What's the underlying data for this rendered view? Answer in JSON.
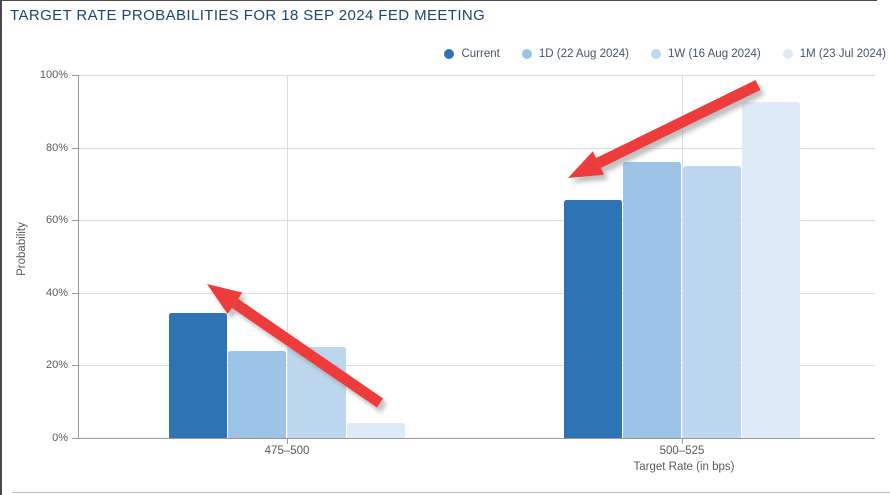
{
  "header": {
    "title": "TARGET RATE PROBABILITIES FOR 18 SEP 2024 FED MEETING"
  },
  "colors": {
    "title_text": "#1c4670",
    "axis_text": "#595959",
    "legend_text": "#44546a",
    "grid_line": "#dcdcdc",
    "axis_line": "#9a9a9a",
    "frame_border_dark": "#4a4a4a",
    "frame_border_light": "#bfbfbf",
    "annotation_arrow": "#ee3b3b",
    "series_current": "#2e74b5",
    "series_1d": "#9dc3e6",
    "series_1w": "#bdd7ee",
    "series_1m": "#deebf7"
  },
  "chart_data": {
    "type": "bar",
    "title": "TARGET RATE PROBABILITIES FOR 18 SEP 2024 FED MEETING",
    "categories": [
      "475–500",
      "500–525"
    ],
    "series": [
      {
        "name": "Current",
        "color": "#2e74b5",
        "values": [
          34.5,
          65.5
        ]
      },
      {
        "name": "1D (22 Aug 2024)",
        "color": "#9dc3e6",
        "values": [
          24.0,
          76.0
        ]
      },
      {
        "name": "1W (16 Aug 2024)",
        "color": "#bdd7ee",
        "values": [
          25.0,
          75.0
        ]
      },
      {
        "name": "1M (23 Jul 2024)",
        "color": "#deebf7",
        "values": [
          4.0,
          92.5
        ]
      }
    ],
    "xlabel": "Target Rate (in bps)",
    "ylabel": "Probability",
    "ylim": [
      0,
      100
    ],
    "yticks": [
      "0%",
      "20%",
      "40%",
      "60%",
      "80%",
      "100%"
    ],
    "grid": true,
    "legend_position": "top-right"
  },
  "annotations": {
    "arrows": [
      {
        "name": "red-arrow-pointing-up-left-at-current-bar-475-500"
      },
      {
        "name": "red-arrow-pointing-down-left-at-current-bar-500-525"
      }
    ]
  }
}
